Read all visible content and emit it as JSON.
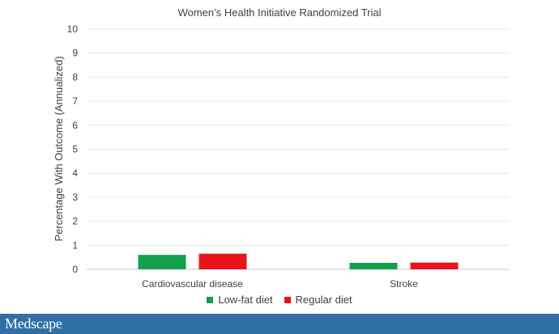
{
  "chart_data": {
    "type": "bar",
    "title": "Women’s Health Initiative Randomized Trial",
    "ylabel": "Percentage With Outcome (Annualized)",
    "xlabel": "",
    "ylim": [
      0,
      10
    ],
    "yticks": [
      "0",
      "1",
      "2",
      "3",
      "4",
      "5",
      "6",
      "7",
      "8",
      "9",
      "10"
    ],
    "categories": [
      "Cardiovascular disease",
      "Stroke"
    ],
    "series": [
      {
        "name": "Low-fat diet",
        "values": [
          0.6,
          0.27
        ],
        "color": "#12a14a"
      },
      {
        "name": "Regular diet",
        "values": [
          0.65,
          0.28
        ],
        "color": "#e8141a"
      }
    ],
    "grid": true,
    "legend": "bottom-center"
  },
  "footer": {
    "brand": "Medscape",
    "background": "#2f6fa6"
  }
}
